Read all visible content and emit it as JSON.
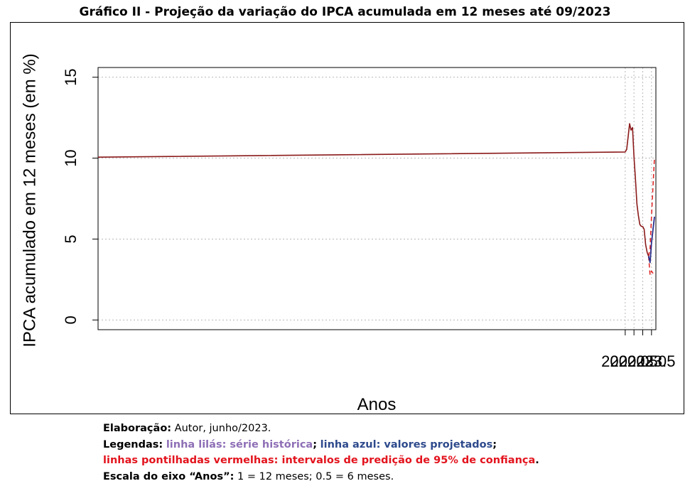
{
  "header": {
    "title": "Gráfico II - Projeção da variação do IPCA acumulada em 12 meses até 09/2023"
  },
  "notes": {
    "elab_label": "Elaboração:",
    "elab_text": " Autor, junho/2023.",
    "legend_label": "Legendas:",
    "legend_lilac": "linha lilás: série histórica",
    "legend_sep": ";",
    "legend_blue": "linha azul: valores projetados",
    "legend_end": ";",
    "legend_red": "linhas pontilhadas vermelhas: intervalos de predição de 95% de confiança",
    "legend_red_end": ".",
    "scale_label": "Escala do eixo “Anos”:",
    "scale_text": " 1 = 12 meses; 0.5 = 6 meses."
  },
  "chart_data": {
    "type": "line",
    "title": "",
    "xlabel": "Anos",
    "ylabel": "IPCA acumulado em 12 meses (em %)",
    "xlim": [
      1991.93,
      2023.75
    ],
    "ylim": [
      -0.6,
      15.6
    ],
    "xticks": [
      "2022.0",
      "2022.5",
      "2023.0",
      "2023.5"
    ],
    "yticks": [
      "0",
      "5",
      "10",
      "15"
    ],
    "grid": true,
    "colors": {
      "historical": "#8b1a1a",
      "projected": "#2b2f8c",
      "interval": "#e02020"
    },
    "series": [
      {
        "key": "historical",
        "x": [
          1991.93,
          2022.0,
          2022.083,
          2022.167,
          2022.25,
          2022.333,
          2022.417,
          2022.5,
          2022.583,
          2022.667,
          2022.75,
          2022.833,
          2022.917,
          2023.0,
          2023.083,
          2023.167,
          2023.25,
          2023.333
        ],
        "y": [
          10.06,
          10.38,
          10.54,
          11.3,
          12.13,
          11.73,
          11.89,
          10.07,
          8.73,
          7.17,
          6.47,
          5.9,
          5.79,
          5.77,
          5.6,
          4.65,
          4.18,
          3.94
        ]
      },
      {
        "key": "projected",
        "x": [
          2023.333,
          2023.417,
          2023.5,
          2023.583,
          2023.667
        ],
        "y": [
          3.94,
          3.55,
          4.75,
          5.57,
          6.38
        ]
      },
      {
        "key": "upper_95",
        "x": [
          2023.333,
          2023.417,
          2023.5,
          2023.583,
          2023.667
        ],
        "y": [
          3.94,
          4.43,
          6.38,
          8.23,
          10.04
        ]
      },
      {
        "key": "lower_95",
        "x": [
          2023.333,
          2023.417,
          2023.5,
          2023.583,
          2023.667
        ],
        "y": [
          3.94,
          2.79,
          3.02,
          2.89,
          2.79
        ]
      }
    ]
  }
}
